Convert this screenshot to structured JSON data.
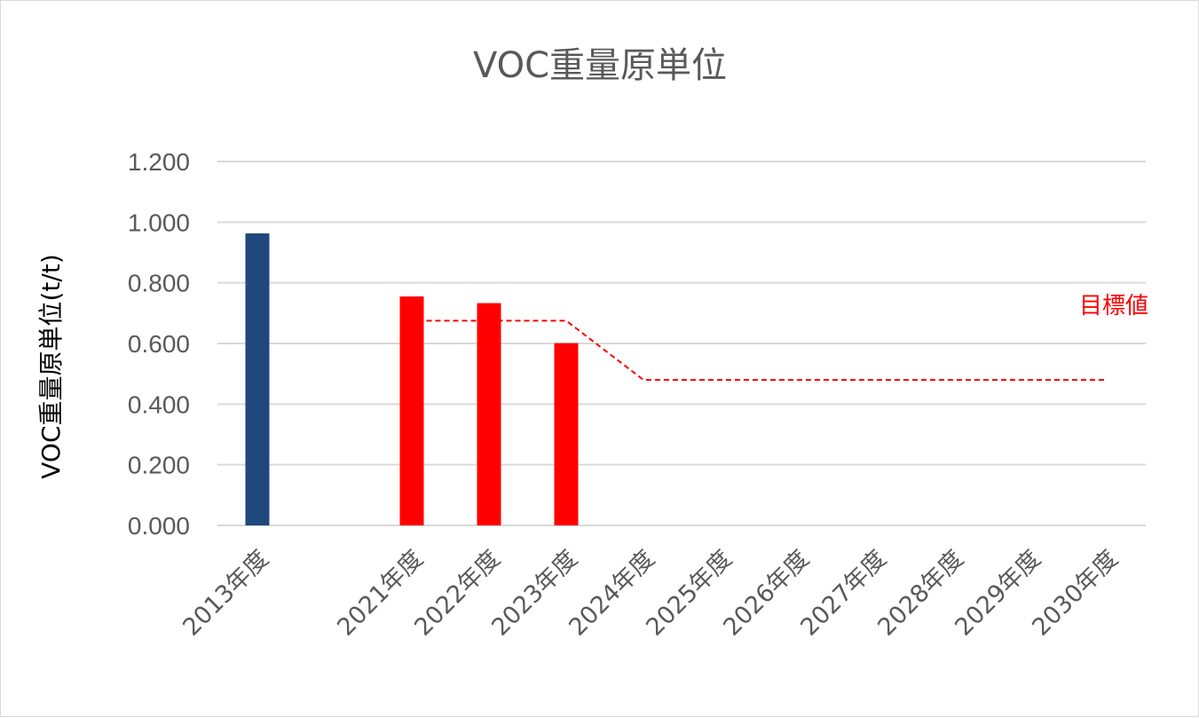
{
  "chart_data": {
    "type": "bar",
    "title": "VOC重量原単位",
    "ylabel": "VOC重量原単位(t/t)",
    "xlabel": "",
    "ylim": [
      0,
      1.2
    ],
    "ytick_labels": [
      "0.000",
      "0.200",
      "0.400",
      "0.600",
      "0.800",
      "1.000",
      "1.200"
    ],
    "grid": true,
    "categories": [
      "2013年度",
      "",
      "2021年度",
      "2022年度",
      "2023年度",
      "2024年度",
      "2025年度",
      "2026年度",
      "2027年度",
      "2028年度",
      "2029年度",
      "2030年度"
    ],
    "bars": [
      {
        "category": "2013年度",
        "value": 0.963,
        "color": "#1f497d"
      },
      {
        "category": "2021年度",
        "value": 0.755,
        "color": "#ff0000"
      },
      {
        "category": "2022年度",
        "value": 0.733,
        "color": "#ff0000"
      },
      {
        "category": "2023年度",
        "value": 0.601,
        "color": "#ff0000"
      }
    ],
    "target_line": {
      "label": "目標値",
      "color": "#ff0000",
      "style": "dashed",
      "points": [
        {
          "category": "2021年度",
          "value": 0.675
        },
        {
          "category": "2023年度",
          "value": 0.675
        },
        {
          "category": "2024年度",
          "value": 0.48
        },
        {
          "category": "2030年度",
          "value": 0.48
        }
      ]
    }
  }
}
